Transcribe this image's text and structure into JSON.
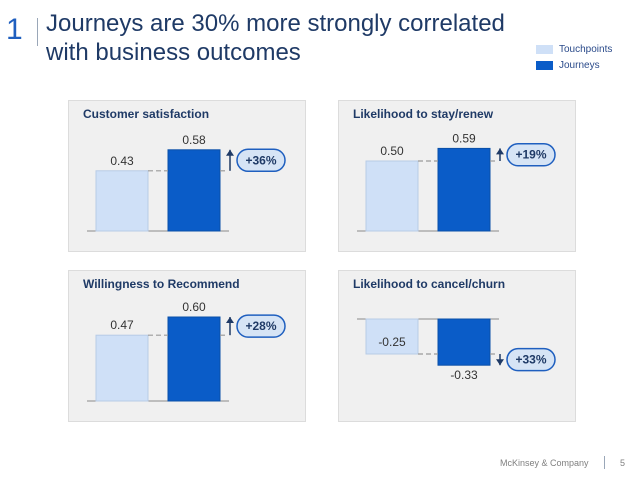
{
  "slide": {
    "number": "1",
    "title": "Journeys are 30% more strongly correlated with business outcomes"
  },
  "legend": {
    "touchpoints": "Touchpoints",
    "journeys": "Journeys"
  },
  "colors": {
    "touchpoints": "#cfe0f7",
    "journeys": "#0a5cc8",
    "badge_fill": "#d6e4f5",
    "badge_border": "#1f5fbf",
    "title": "#1f3a66"
  },
  "chart_data": [
    {
      "type": "bar",
      "title": "Customer satisfaction",
      "categories": [
        "Touchpoints",
        "Journeys"
      ],
      "values": [
        0.43,
        0.58
      ],
      "labels": [
        "0.43",
        "0.58"
      ],
      "difference_label": "+36%",
      "arrow": "up"
    },
    {
      "type": "bar",
      "title": "Likelihood to stay/renew",
      "categories": [
        "Touchpoints",
        "Journeys"
      ],
      "values": [
        0.5,
        0.59
      ],
      "labels": [
        "0.50",
        "0.59"
      ],
      "difference_label": "+19%",
      "arrow": "up"
    },
    {
      "type": "bar",
      "title": "Willingness to Recommend",
      "categories": [
        "Touchpoints",
        "Journeys"
      ],
      "values": [
        0.47,
        0.6
      ],
      "labels": [
        "0.47",
        "0.60"
      ],
      "difference_label": "+28%",
      "arrow": "up"
    },
    {
      "type": "bar",
      "title": "Likelihood to cancel/churn",
      "categories": [
        "Touchpoints",
        "Journeys"
      ],
      "values": [
        -0.25,
        -0.33
      ],
      "labels": [
        "-0.25",
        "-0.33"
      ],
      "difference_label": "+33%",
      "arrow": "down"
    }
  ],
  "footer": {
    "company": "McKinsey & Company",
    "page": "5"
  }
}
